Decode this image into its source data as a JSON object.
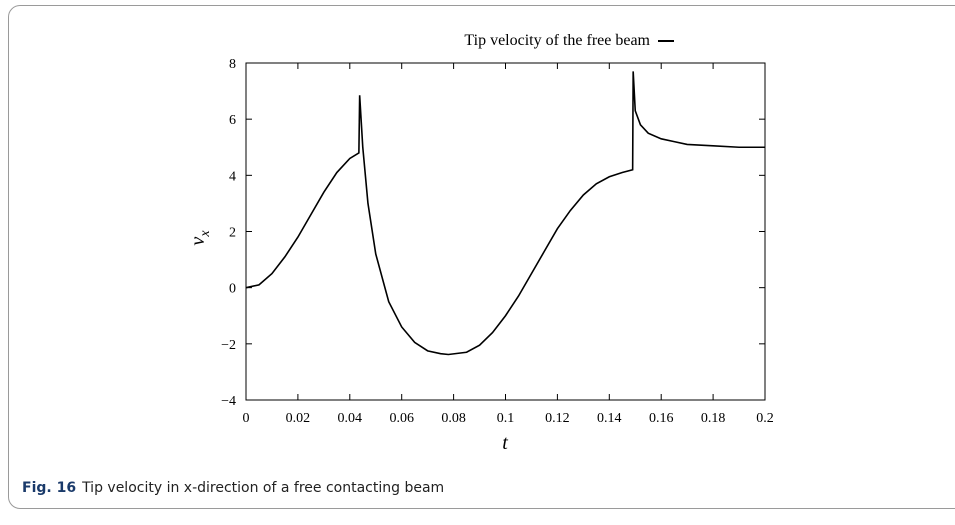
{
  "chart_data": {
    "type": "line",
    "xlabel": "t",
    "ylabel": "v",
    "ylabel_sub": "x",
    "series": [
      {
        "name": "Tip velocity of the free beam",
        "color": "#000000",
        "x": [
          0,
          0.005,
          0.01,
          0.015,
          0.02,
          0.025,
          0.03,
          0.035,
          0.04,
          0.0435,
          0.0438,
          0.045,
          0.047,
          0.05,
          0.055,
          0.06,
          0.065,
          0.07,
          0.075,
          0.078,
          0.085,
          0.09,
          0.095,
          0.1,
          0.105,
          0.11,
          0.115,
          0.12,
          0.125,
          0.13,
          0.135,
          0.14,
          0.145,
          0.149,
          0.1492,
          0.15,
          0.152,
          0.155,
          0.16,
          0.165,
          0.17,
          0.18,
          0.19,
          0.2
        ],
        "values": [
          0,
          0.1,
          0.5,
          1.1,
          1.8,
          2.6,
          3.4,
          4.1,
          4.6,
          4.8,
          6.85,
          5.0,
          3.0,
          1.2,
          -0.5,
          -1.4,
          -1.95,
          -2.25,
          -2.35,
          -2.38,
          -2.3,
          -2.05,
          -1.6,
          -1.0,
          -0.3,
          0.5,
          1.3,
          2.1,
          2.75,
          3.3,
          3.7,
          3.95,
          4.1,
          4.2,
          7.7,
          6.3,
          5.8,
          5.5,
          5.3,
          5.2,
          5.1,
          5.05,
          5.0,
          5.0
        ]
      }
    ],
    "xlim": [
      0,
      0.2
    ],
    "xticks": [
      0,
      0.02,
      0.04,
      0.06,
      0.08,
      0.1,
      0.12,
      0.14,
      0.16,
      0.18,
      0.2
    ],
    "ylim": [
      -4,
      8
    ],
    "yticks": [
      {
        "value": -4,
        "label": "−4"
      },
      {
        "value": -2,
        "label": "−2"
      },
      0,
      2,
      4,
      6,
      8
    ],
    "grid": false,
    "legend": "top"
  },
  "caption": {
    "label": "Fig. 16",
    "text": "Tip velocity in x-direction of a free contacting beam"
  }
}
